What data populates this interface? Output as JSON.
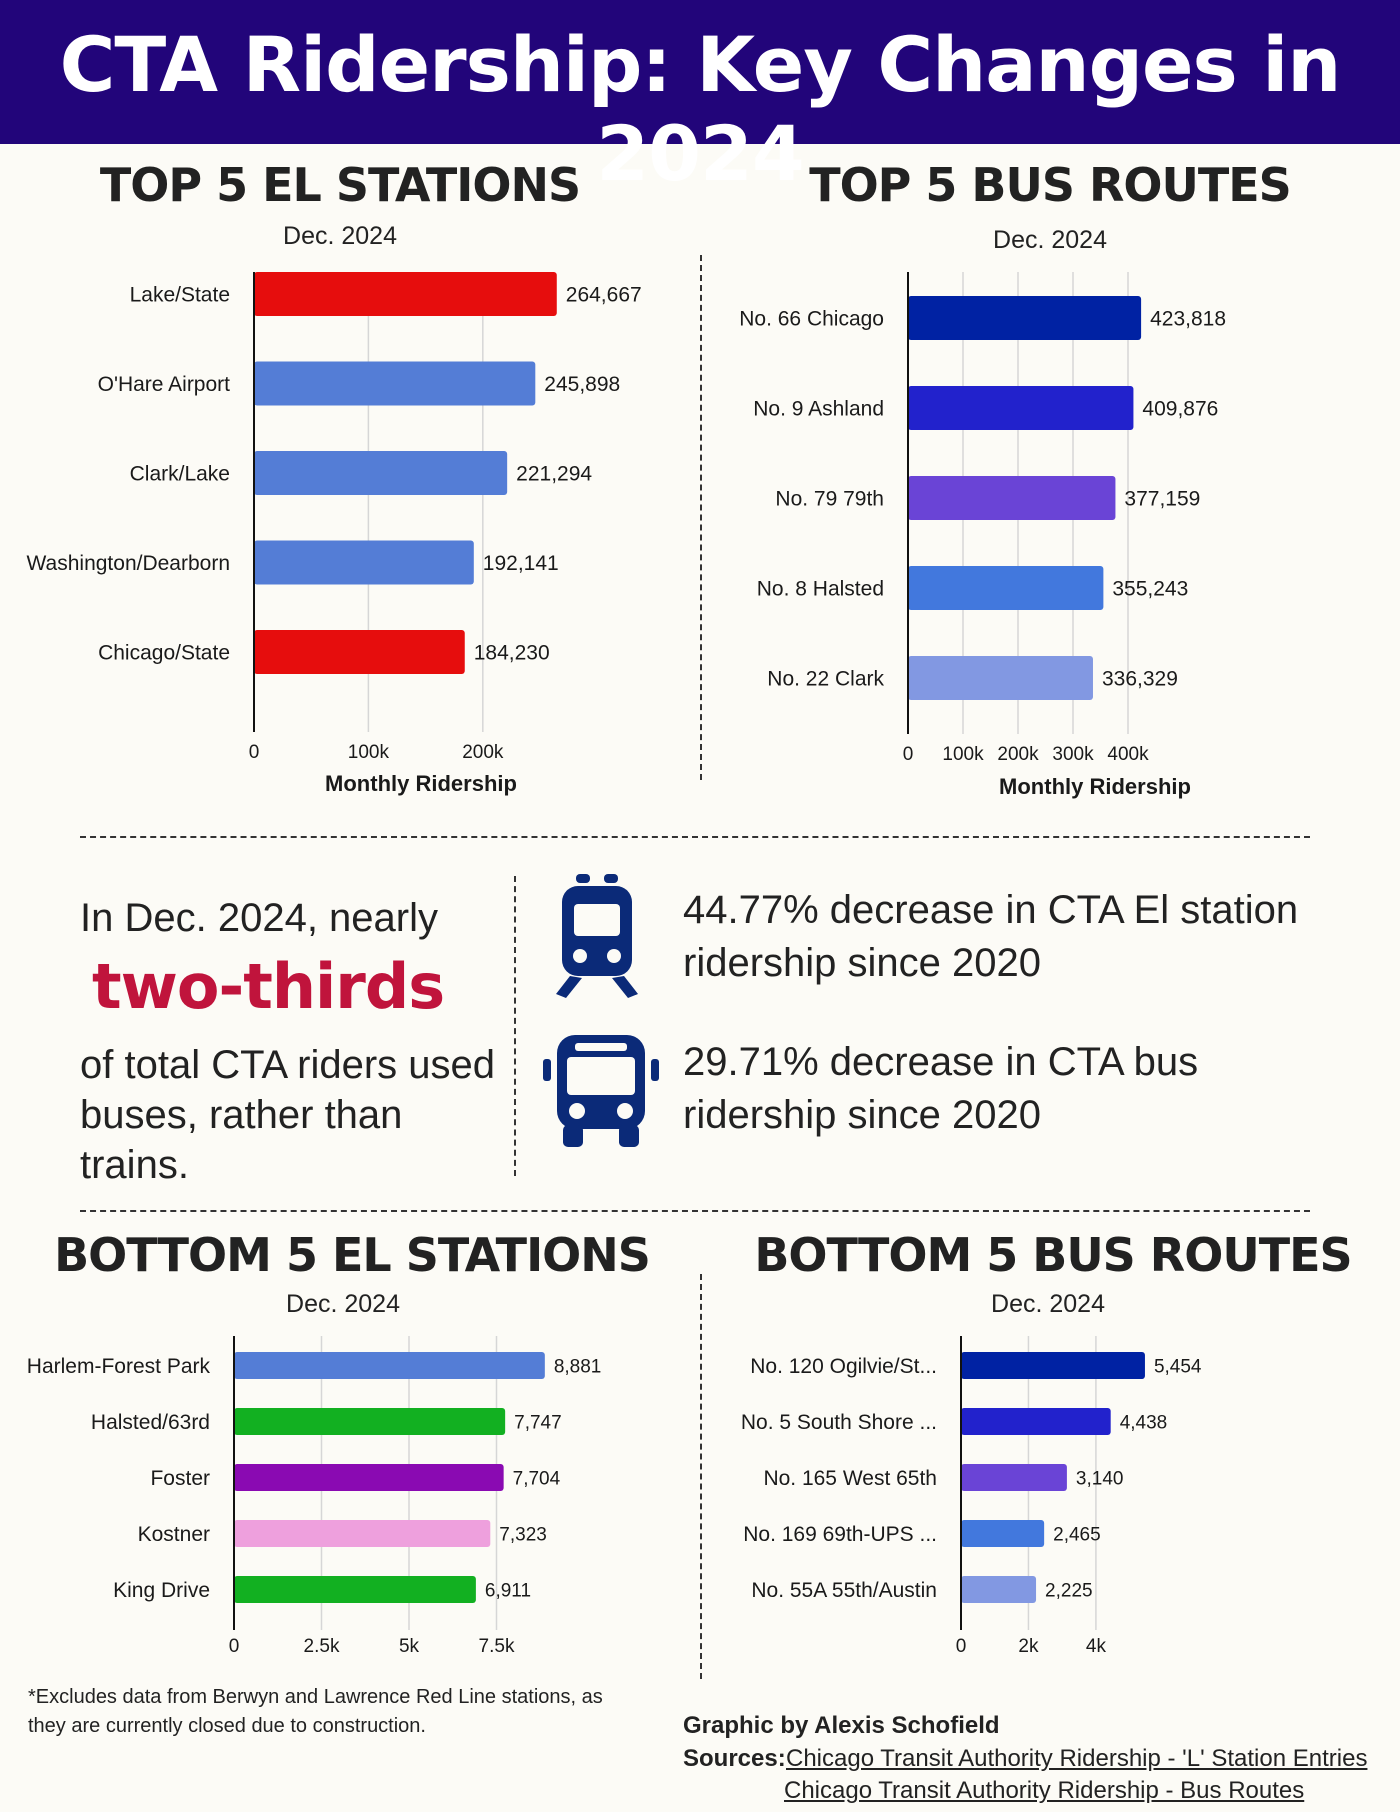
{
  "header": {
    "title": "CTA Ridership: Key Changes in 2024"
  },
  "charts": {
    "top_el": {
      "title": "TOP 5 EL STATIONS",
      "subtitle": "Dec. 2024"
    },
    "top_bus": {
      "title": "TOP 5 BUS ROUTES",
      "subtitle": "Dec. 2024"
    },
    "bottom_el": {
      "title": "BOTTOM 5 EL STATIONS",
      "subtitle": "Dec. 2024"
    },
    "bottom_bus": {
      "title": "BOTTOM 5 BUS ROUTES",
      "subtitle": "Dec. 2024"
    }
  },
  "chart_data": [
    {
      "id": "top_el",
      "type": "bar",
      "orientation": "horizontal",
      "title": "TOP 5 EL STATIONS",
      "subtitle": "Dec. 2024",
      "xlabel": "Monthly Ridership",
      "categories": [
        "Lake/State",
        "O'Hare Airport",
        "Clark/Lake",
        "Washington/Dearborn",
        "Chicago/State"
      ],
      "values": [
        264667,
        245898,
        221294,
        192141,
        184230
      ],
      "value_labels": [
        "264,667",
        "245,898",
        "221,294",
        "192,141",
        "184,230"
      ],
      "colors": [
        "#e60d0d",
        "#547dd6",
        "#547dd6",
        "#547dd6",
        "#e60d0d"
      ],
      "xlim": [
        0,
        250000
      ],
      "ticks": [
        0,
        100000,
        200000
      ],
      "tick_labels": [
        "0",
        "100k",
        "200k"
      ],
      "grid": true
    },
    {
      "id": "top_bus",
      "type": "bar",
      "orientation": "horizontal",
      "title": "TOP 5 BUS ROUTES",
      "subtitle": "Dec. 2024",
      "xlabel": "Monthly Ridership",
      "categories": [
        "No. 66 Chicago",
        "No. 9 Ashland",
        "No. 79 79th",
        "No. 8 Halsted",
        "No. 22 Clark"
      ],
      "values": [
        423818,
        409876,
        377159,
        355243,
        336329
      ],
      "value_labels": [
        "423,818",
        "409,876",
        "377,159",
        "355,243",
        "336,329"
      ],
      "colors": [
        "#0022a3",
        "#2222cc",
        "#6a44d6",
        "#4278dd",
        "#8298e2"
      ],
      "xlim": [
        0,
        440000
      ],
      "ticks": [
        0,
        100000,
        200000,
        300000,
        400000
      ],
      "tick_labels": [
        "0",
        "100k",
        "200k",
        "300k",
        "400k"
      ],
      "grid": true
    },
    {
      "id": "bottom_el",
      "type": "bar",
      "orientation": "horizontal",
      "title": "BOTTOM 5 EL STATIONS",
      "subtitle": "Dec. 2024",
      "xlabel": "",
      "categories": [
        "Harlem-Forest Park",
        "Halsted/63rd",
        "Foster",
        "Kostner",
        "King Drive"
      ],
      "values": [
        8881,
        7747,
        7704,
        7323,
        6911
      ],
      "value_labels": [
        "8,881",
        "7,747",
        "7,704",
        "7,323",
        "6,911"
      ],
      "colors": [
        "#547dd6",
        "#12b021",
        "#8a0ab2",
        "#eea0dd",
        "#12b021"
      ],
      "xlim": [
        0,
        9000
      ],
      "ticks": [
        0,
        2500,
        5000,
        7500
      ],
      "tick_labels": [
        "0",
        "2.5k",
        "5k",
        "7.5k"
      ],
      "grid": true
    },
    {
      "id": "bottom_bus",
      "type": "bar",
      "orientation": "horizontal",
      "title": "BOTTOM 5 BUS ROUTES",
      "subtitle": "Dec. 2024",
      "xlabel": "",
      "categories": [
        "No. 120 Ogilvie/St...",
        "No. 5 South Shore ...",
        "No. 165 West 65th",
        "No. 169 69th-UPS ...",
        "No. 55A 55th/Austin"
      ],
      "values": [
        5454,
        4438,
        3140,
        2465,
        2225
      ],
      "value_labels": [
        "5,454",
        "4,438",
        "3,140",
        "2,465",
        "2,225"
      ],
      "colors": [
        "#0022a3",
        "#2222cc",
        "#6a44d6",
        "#4278dd",
        "#8298e2"
      ],
      "xlim": [
        0,
        5900
      ],
      "ticks": [
        0,
        2000,
        4000
      ],
      "tick_labels": [
        "0",
        "2k",
        "4k"
      ],
      "grid": true
    }
  ],
  "middle": {
    "intro": "In Dec. 2024, nearly",
    "highlight": "two-thirds",
    "line1": "of total CTA riders used",
    "line2": "buses, rather than trains.",
    "highlight_color": "#c0143c"
  },
  "stats": [
    {
      "icon": "train-icon",
      "line1": "44.77% decrease in CTA El station",
      "line2": "ridership since 2020"
    },
    {
      "icon": "bus-icon",
      "line1": "29.71% decrease in CTA bus",
      "line2": "ridership since 2020"
    }
  ],
  "icon_color": "#0b2a78",
  "footnote": {
    "line1": "*Excludes data from Berwyn and Lawrence Red Line stations, as",
    "line2": "they are currently closed due to construction."
  },
  "credits": {
    "byline": "Graphic by Alexis Schofield",
    "sources_label": "Sources:",
    "source1": "Chicago Transit Authority Ridership - 'L' Station Entries",
    "source2": "Chicago Transit Authority Ridership - Bus Routes"
  }
}
